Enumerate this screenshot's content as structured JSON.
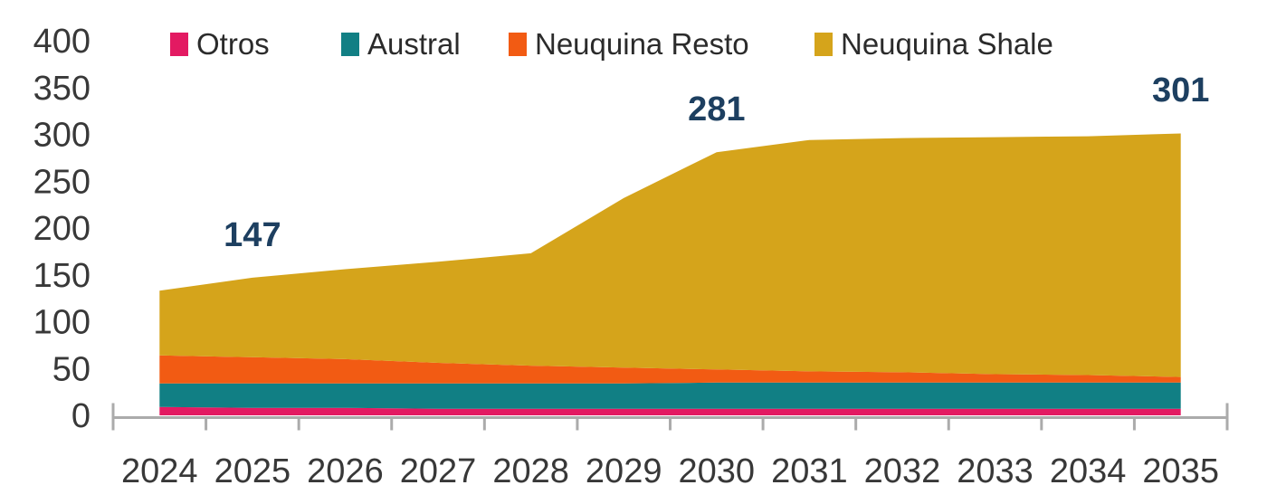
{
  "chart_data": {
    "type": "area",
    "stacked": true,
    "title": "",
    "xlabel": "",
    "ylabel": "",
    "ylim": [
      0,
      400
    ],
    "yticks": [
      "0",
      "50",
      "100",
      "150",
      "200",
      "250",
      "300",
      "350",
      "400"
    ],
    "grid": false,
    "legend_position": "top",
    "categories": [
      "2024",
      "2025",
      "2026",
      "2027",
      "2028",
      "2029",
      "2030",
      "2031",
      "2032",
      "2033",
      "2034",
      "2035"
    ],
    "series": [
      {
        "name": "Otros",
        "color": "#e31a62",
        "values": [
          9,
          8,
          8,
          7,
          7,
          7,
          7,
          7,
          7,
          7,
          7,
          7
        ]
      },
      {
        "name": "Austral",
        "color": "#117f84",
        "values": [
          25,
          26,
          26,
          27,
          27,
          27,
          28,
          28,
          28,
          28,
          28,
          28
        ]
      },
      {
        "name": "Neuquina Resto",
        "color": "#f25b13",
        "values": [
          30,
          28,
          26,
          22,
          19,
          17,
          14,
          12,
          11,
          9,
          8,
          6
        ]
      },
      {
        "name": "Neuquina Shale",
        "color": "#d5a41b",
        "values": [
          69,
          85,
          96,
          108,
          120,
          181,
          232,
          247,
          250,
          253,
          255,
          260
        ]
      }
    ],
    "totals": [
      133,
      147,
      156,
      164,
      173,
      232,
      281,
      294,
      296,
      297,
      298,
      301
    ],
    "annotations": [
      {
        "category": "2025",
        "label": "147"
      },
      {
        "category": "2030",
        "label": "281"
      },
      {
        "category": "2035",
        "label": "301"
      }
    ],
    "colors": {
      "annotation_text": "#1d3f60",
      "axis_line": "#ababab",
      "tick_text": "#383838",
      "legend_text": "#2b2b2b",
      "background": "#ffffff"
    }
  }
}
